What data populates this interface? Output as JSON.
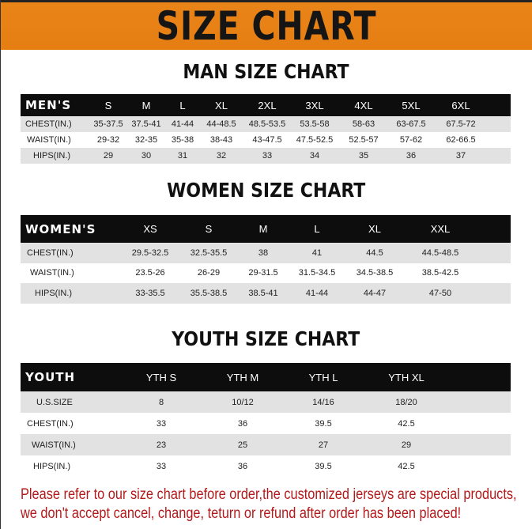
{
  "banner": {
    "title": "SIZE CHART",
    "color": "#e8821a"
  },
  "men": {
    "title": "MAN SIZE CHART",
    "header": [
      "MEN'S",
      "S",
      "M",
      "L",
      "XL",
      "2XL",
      "3XL",
      "4XL",
      "5XL",
      "6XL"
    ],
    "rows": [
      [
        "CHEST(IN.)",
        "35-37.5",
        "37.5-41",
        "41-44",
        "44-48.5",
        "48.5-53.5",
        "53.5-58",
        "58-63",
        "63-67.5",
        "67.5-72"
      ],
      [
        "WAIST(IN.)",
        "29-32",
        "32-35",
        "35-38",
        "38-43",
        "43-47.5",
        "47.5-52.5",
        "52.5-57",
        "57-62",
        "62-66.5"
      ],
      [
        "HIPS(IN.)",
        "29",
        "30",
        "31",
        "32",
        "33",
        "34",
        "35",
        "36",
        "37"
      ]
    ]
  },
  "women": {
    "title": "WOMEN SIZE CHART",
    "header": [
      "WOMEN'S",
      "XS",
      "S",
      "M",
      "L",
      "XL",
      "XXL"
    ],
    "rows": [
      [
        "CHEST(IN.)",
        "29.5-32.5",
        "32.5-35.5",
        "38",
        "41",
        "44.5",
        "44.5-48.5"
      ],
      [
        "WAIST(IN.)",
        "23.5-26",
        "26-29",
        "29-31.5",
        "31.5-34.5",
        "34.5-38.5",
        "38.5-42.5"
      ],
      [
        "HIPS(IN.)",
        "33-35.5",
        "35.5-38.5",
        "38.5-41",
        "41-44",
        "44-47",
        "47-50"
      ]
    ]
  },
  "youth": {
    "title": "YOUTH SIZE CHART",
    "header": [
      "YOUTH",
      "YTH S",
      "YTH M",
      "YTH L",
      "YTH XL"
    ],
    "rows": [
      [
        "U.S.SIZE",
        "8",
        "10/12",
        "14/16",
        "18/20"
      ],
      [
        "CHEST(IN.)",
        "33",
        "36",
        "39.5",
        "42.5"
      ],
      [
        "WAIST(IN.)",
        "23",
        "25",
        "27",
        "29"
      ],
      [
        "HIPS(IN.)",
        "33",
        "36",
        "39.5",
        "42.5"
      ]
    ]
  },
  "notice": "Please refer to our size chart before order,the customized jerseys are special products, we don't accept cancel, change, teturn or refund after order has been placed!",
  "notice_color": "#b41a1a"
}
